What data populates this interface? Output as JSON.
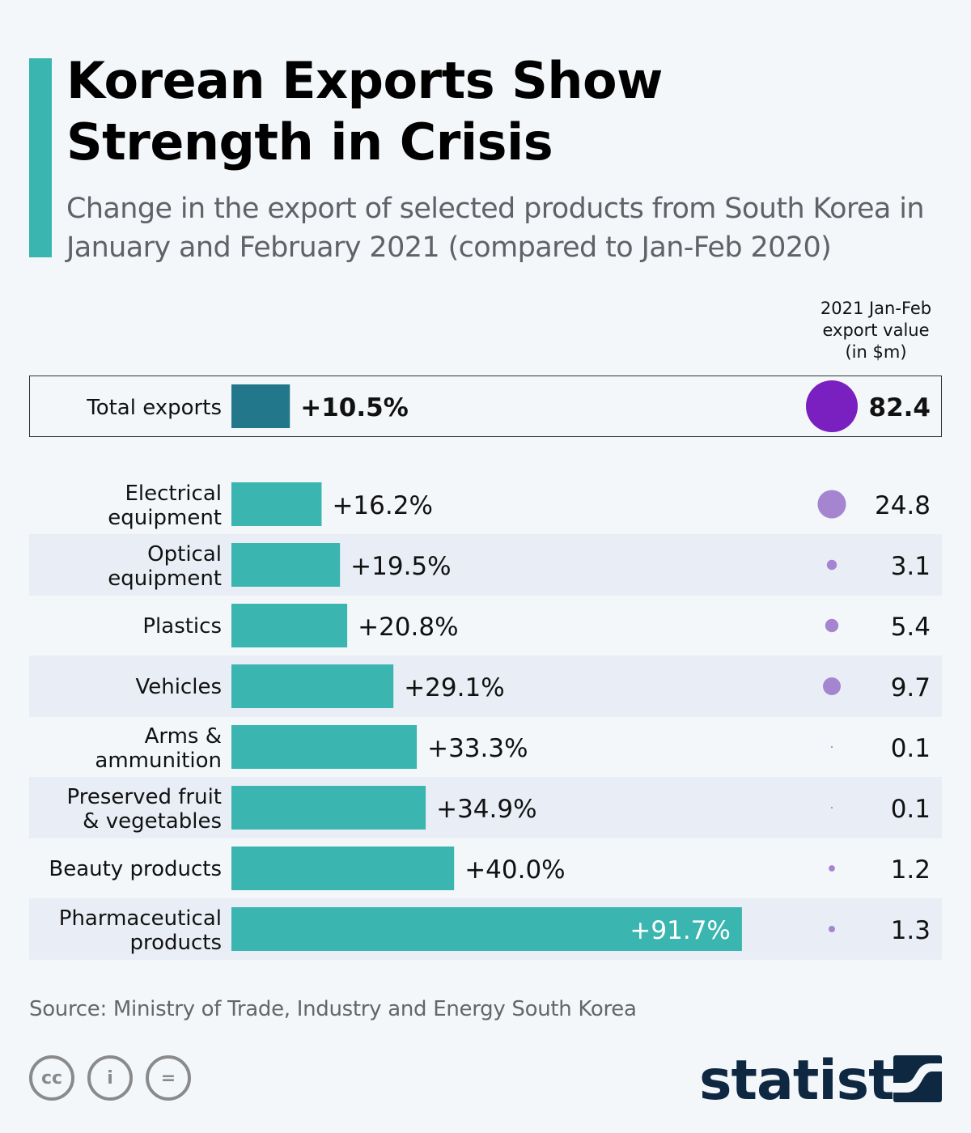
{
  "header": {
    "title_line1": "Korean Exports Show",
    "title_line2": "Strength in Crisis",
    "subtitle": "Change in the export of selected products from South Korea in January and February 2021 (compared to Jan-Feb 2020)"
  },
  "column_header": {
    "line1": "2021 Jan-Feb",
    "line2": "export value",
    "line3": "(in $m)"
  },
  "chart_data": {
    "type": "bar",
    "orientation": "horizontal",
    "total": {
      "category": "Total exports",
      "change_label": "+10.5%",
      "change": 10.5,
      "export_value": 82.4,
      "export_label": "82.4"
    },
    "categories": [
      [
        "Electrical",
        "equipment"
      ],
      [
        "Optical",
        "equipment"
      ],
      [
        "Plastics"
      ],
      [
        "Vehicles"
      ],
      [
        "Arms &",
        "ammunition"
      ],
      [
        "Preserved fruit",
        "& vegetables"
      ],
      [
        "Beauty products"
      ],
      [
        "Pharmaceutical",
        "products"
      ]
    ],
    "values": [
      16.2,
      19.5,
      20.8,
      29.1,
      33.3,
      34.9,
      40.0,
      91.7
    ],
    "value_labels": [
      "+16.2%",
      "+19.5%",
      "+20.8%",
      "+29.1%",
      "+33.3%",
      "+34.9%",
      "+40.0%",
      "+91.7%"
    ],
    "export_values": [
      24.8,
      3.1,
      5.4,
      9.7,
      0.1,
      0.1,
      1.2,
      1.3
    ],
    "export_labels": [
      "24.8",
      "3.1",
      "5.4",
      "9.7",
      "0.1",
      "0.1",
      "1.2",
      "1.3"
    ],
    "colors": {
      "bar": "#3ab5b0",
      "total_bar": "#22788a",
      "total_bubble": "#7a1fc0",
      "bubble": "#a585d0",
      "row_alt": "#e9eef6"
    }
  },
  "footer": {
    "source": "Source: Ministry of Trade, Industry and Energy South Korea",
    "cc": "cc",
    "by": "i",
    "nd": "=",
    "logo": "statista"
  }
}
